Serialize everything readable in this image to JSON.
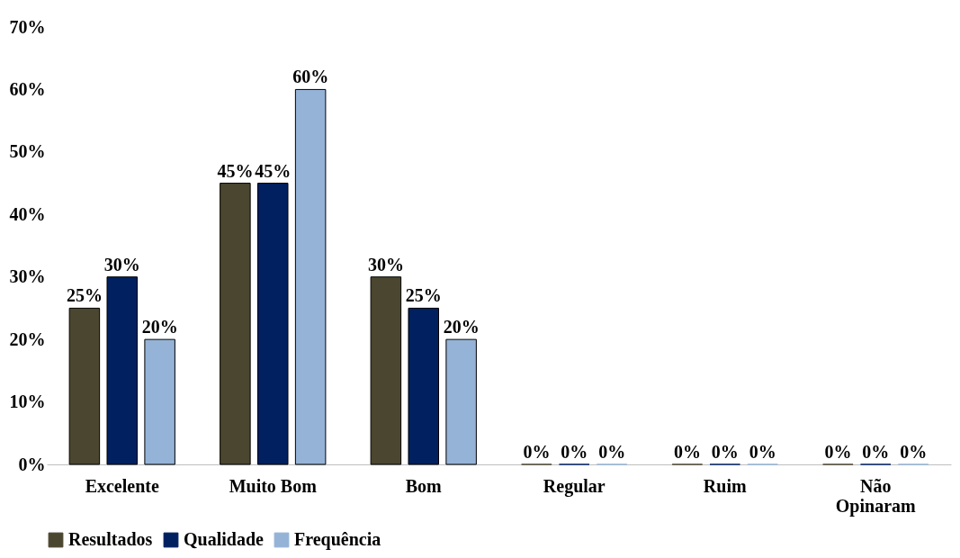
{
  "chart_data": {
    "type": "bar",
    "categories": [
      "Excelente",
      "Muito Bom",
      "Bom",
      "Regular",
      "Ruim",
      "Não Opinaram"
    ],
    "series": [
      {
        "name": "Resultados",
        "color": "#4b4630",
        "values": [
          25,
          45,
          30,
          0,
          0,
          0
        ],
        "value_labels": [
          "25%",
          "45%",
          "30%",
          "0%",
          "0%",
          "0%"
        ]
      },
      {
        "name": "Qualidade",
        "color": "#002060",
        "values": [
          30,
          45,
          25,
          0,
          0,
          0
        ],
        "value_labels": [
          "30%",
          "45%",
          "25%",
          "0%",
          "0%",
          "0%"
        ]
      },
      {
        "name": "Frequência",
        "color": "#95b3d7",
        "values": [
          20,
          60,
          20,
          0,
          0,
          0
        ],
        "value_labels": [
          "20%",
          "60%",
          "20%",
          "0%",
          "0%",
          "0%"
        ]
      }
    ],
    "ylim": [
      0,
      70
    ],
    "yticks": [
      {
        "value": 0,
        "label": "0%"
      },
      {
        "value": 10,
        "label": "10%"
      },
      {
        "value": 20,
        "label": "20%"
      },
      {
        "value": 30,
        "label": "30%"
      },
      {
        "value": 40,
        "label": "40%"
      },
      {
        "value": 50,
        "label": "50%"
      },
      {
        "value": 60,
        "label": "60%"
      },
      {
        "value": 70,
        "label": "70%"
      }
    ],
    "grid": false,
    "legend": "bottom"
  }
}
